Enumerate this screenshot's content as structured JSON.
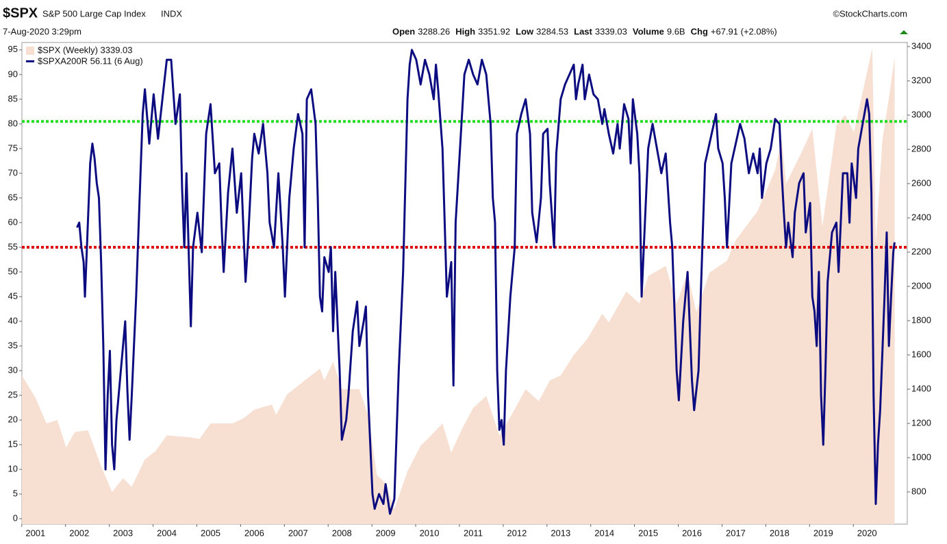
{
  "chart_data": {
    "type": "line",
    "header": {
      "symbol": "$SPX",
      "name": "S&P 500 Large Cap Index",
      "exchange": "INDX",
      "source": "©StockCharts.com",
      "date": "7-Aug-2020 3:29pm",
      "quote": [
        {
          "label": "Open",
          "value": 3288.26
        },
        {
          "label": "High",
          "value": 3351.92
        },
        {
          "label": "Low",
          "value": 3284.53
        },
        {
          "label": "Last",
          "value": 3339.03
        },
        {
          "label": "Volume",
          "value": "9.6B"
        },
        {
          "label": "Chg",
          "value": "+67.91 (+2.08%)"
        }
      ]
    },
    "xlim": [
      2000.69,
      2020.92
    ],
    "xticks": [
      2001,
      2002,
      2003,
      2004,
      2005,
      2006,
      2007,
      2008,
      2009,
      2010,
      2011,
      2012,
      2013,
      2014,
      2015,
      2016,
      2017,
      2018,
      2019,
      2020
    ],
    "ylim": [
      -1.1,
      96.5
    ],
    "yticks": [
      0,
      5,
      10,
      15,
      20,
      25,
      30,
      35,
      40,
      45,
      50,
      55,
      60,
      65,
      70,
      75,
      80,
      85,
      90,
      95
    ],
    "y2lim": [
      612,
      3424
    ],
    "y2ticks": [
      800,
      1000,
      1200,
      1400,
      1600,
      1800,
      2000,
      2200,
      2400,
      2600,
      2800,
      3000,
      3200,
      3400
    ],
    "reference_lines": [
      {
        "value": 80.5,
        "color": "#22dd22"
      },
      {
        "value": 55,
        "color": "#dd0000"
      }
    ],
    "series": [
      {
        "name": "$SPX (Weekly) 3339.03",
        "axis": "y2",
        "style": "area",
        "color": "#f7dfd2",
        "x": [
          2000.69,
          2001.0,
          2001.25,
          2001.5,
          2001.7,
          2001.9,
          2002.2,
          2002.5,
          2002.75,
          2003.0,
          2003.2,
          2003.5,
          2003.75,
          2004.0,
          2004.5,
          2004.75,
          2005.0,
          2005.5,
          2005.75,
          2006.0,
          2006.4,
          2006.5,
          2006.75,
          2007.0,
          2007.5,
          2007.6,
          2007.8,
          2008.0,
          2008.4,
          2008.6,
          2008.8,
          2009.0,
          2009.2,
          2009.5,
          2009.8,
          2010.0,
          2010.3,
          2010.5,
          2010.75,
          2011.0,
          2011.3,
          2011.6,
          2011.9,
          2012.2,
          2012.5,
          2012.75,
          2013.0,
          2013.3,
          2013.6,
          2013.95,
          2014.1,
          2014.5,
          2014.8,
          2015.0,
          2015.4,
          2015.65,
          2015.9,
          2016.1,
          2016.4,
          2016.8,
          2017.0,
          2017.5,
          2017.9,
          2018.05,
          2018.15,
          2018.5,
          2018.75,
          2018.98,
          2019.3,
          2019.5,
          2019.7,
          2020.0,
          2020.12,
          2020.2,
          2020.35,
          2020.5,
          2020.63
        ],
        "values": [
          1480,
          1350,
          1200,
          1220,
          1060,
          1150,
          1160,
          950,
          800,
          880,
          830,
          990,
          1040,
          1130,
          1120,
          1110,
          1200,
          1200,
          1230,
          1280,
          1310,
          1250,
          1370,
          1420,
          1520,
          1450,
          1560,
          1400,
          1400,
          1250,
          900,
          850,
          700,
          920,
          1070,
          1120,
          1200,
          1030,
          1170,
          1290,
          1360,
          1130,
          1260,
          1400,
          1330,
          1450,
          1480,
          1600,
          1690,
          1840,
          1790,
          1970,
          1900,
          2060,
          2120,
          1900,
          2080,
          1850,
          2080,
          2150,
          2270,
          2440,
          2680,
          2860,
          2600,
          2780,
          2920,
          2350,
          2940,
          3000,
          2900,
          3250,
          3390,
          2250,
          2850,
          3100,
          3339
        ]
      },
      {
        "name": "$SPXA200R 56.11 (6 Aug)",
        "style": "line",
        "color": "#0c0c80",
        "x": [
          2001.95,
          2002.0,
          2002.05,
          2002.1,
          2002.13,
          2002.18,
          2002.25,
          2002.3,
          2002.35,
          2002.4,
          2002.45,
          2002.5,
          2002.55,
          2002.6,
          2002.65,
          2002.7,
          2002.75,
          2002.8,
          2002.85,
          2002.9,
          2002.95,
          2003.05,
          2003.1,
          2003.15,
          2003.2,
          2003.3,
          2003.4,
          2003.45,
          2003.5,
          2003.6,
          2003.7,
          2003.8,
          2003.9,
          2004.0,
          2004.1,
          2004.2,
          2004.3,
          2004.35,
          2004.4,
          2004.45,
          2004.55,
          2004.6,
          2004.7,
          2004.8,
          2004.9,
          2005.0,
          2005.1,
          2005.2,
          2005.25,
          2005.3,
          2005.4,
          2005.5,
          2005.6,
          2005.7,
          2005.8,
          2005.85,
          2005.95,
          2006.0,
          2006.1,
          2006.2,
          2006.3,
          2006.35,
          2006.45,
          2006.55,
          2006.65,
          2006.7,
          2006.8,
          2006.9,
          2007.0,
          2007.1,
          2007.15,
          2007.2,
          2007.3,
          2007.4,
          2007.45,
          2007.5,
          2007.55,
          2007.6,
          2007.7,
          2007.75,
          2007.8,
          2007.85,
          2007.95,
          2008.0,
          2008.1,
          2008.15,
          2008.25,
          2008.35,
          2008.4,
          2008.5,
          2008.55,
          2008.6,
          2008.7,
          2008.75,
          2008.85,
          2008.95,
          2009.0,
          2009.1,
          2009.2,
          2009.3,
          2009.4,
          2009.5,
          2009.55,
          2009.6,
          2009.7,
          2009.8,
          2009.9,
          2010.0,
          2010.1,
          2010.15,
          2010.2,
          2010.3,
          2010.35,
          2010.4,
          2010.5,
          2010.55,
          2010.6,
          2010.7,
          2010.8,
          2010.9,
          2011.0,
          2011.1,
          2011.2,
          2011.3,
          2011.4,
          2011.45,
          2011.5,
          2011.55,
          2011.6,
          2011.65,
          2011.7,
          2011.75,
          2011.85,
          2011.95,
          2012.0,
          2012.1,
          2012.2,
          2012.3,
          2012.35,
          2012.45,
          2012.55,
          2012.6,
          2012.7,
          2012.75,
          2012.85,
          2012.9,
          2013.0,
          2013.1,
          2013.2,
          2013.3,
          2013.35,
          2013.4,
          2013.5,
          2013.55,
          2013.65,
          2013.75,
          2013.85,
          2013.95,
          2014.0,
          2014.1,
          2014.2,
          2014.3,
          2014.35,
          2014.45,
          2014.55,
          2014.6,
          2014.65,
          2014.75,
          2014.8,
          2014.85,
          2014.9,
          2015.0,
          2015.1,
          2015.2,
          2015.3,
          2015.4,
          2015.5,
          2015.55,
          2015.65,
          2015.7,
          2015.8,
          2015.9,
          2015.95,
          2016.0,
          2016.05,
          2016.15,
          2016.2,
          2016.3,
          2016.4,
          2016.5,
          2016.55,
          2016.6,
          2016.7,
          2016.75,
          2016.8,
          2016.9,
          2017.0,
          2017.1,
          2017.2,
          2017.3,
          2017.4,
          2017.5,
          2017.55,
          2017.6,
          2017.7,
          2017.8,
          2017.9,
          2018.0,
          2018.05,
          2018.1,
          2018.15,
          2018.2,
          2018.3,
          2018.35,
          2018.45,
          2018.55,
          2018.6,
          2018.7,
          2018.75,
          2018.8,
          2018.85,
          2018.9,
          2018.95,
          2019.0,
          2019.05,
          2019.1,
          2019.2,
          2019.3,
          2019.35,
          2019.45,
          2019.55,
          2019.6,
          2019.65,
          2019.75,
          2019.8,
          2019.9,
          2020.0,
          2020.05,
          2020.1,
          2020.15,
          2020.2,
          2020.25,
          2020.3,
          2020.4,
          2020.45,
          2020.5,
          2020.55,
          2020.6,
          2020.63
        ],
        "values": [
          59,
          60,
          55,
          52,
          45,
          56,
          72,
          76,
          73,
          68,
          65,
          52,
          35,
          10,
          25,
          34,
          15,
          10,
          20,
          25,
          30,
          40,
          26,
          16,
          25,
          45,
          70,
          82,
          87,
          76,
          86,
          77,
          85,
          93,
          93,
          80,
          86,
          67,
          55,
          70,
          39,
          55,
          62,
          54,
          78,
          84,
          70,
          72,
          60,
          50,
          66,
          75,
          62,
          70,
          48,
          55,
          73,
          78,
          74,
          80,
          70,
          60,
          55,
          70,
          55,
          45,
          65,
          75,
          82,
          78,
          55,
          85,
          87,
          80,
          65,
          45,
          42,
          53,
          50,
          55,
          38,
          50,
          30,
          16,
          20,
          25,
          38,
          44,
          35,
          40,
          43,
          25,
          5,
          2,
          5,
          3,
          7,
          1,
          4,
          30,
          50,
          85,
          92,
          95,
          93,
          88,
          93,
          90,
          85,
          92,
          87,
          75,
          60,
          45,
          52,
          27,
          60,
          75,
          90,
          93,
          90,
          88,
          93,
          90,
          80,
          65,
          60,
          30,
          18,
          20,
          15,
          30,
          45,
          55,
          78,
          82,
          85,
          78,
          62,
          56,
          65,
          78,
          79,
          68,
          55,
          74,
          85,
          88,
          90,
          92,
          85,
          88,
          92,
          85,
          90,
          86,
          85,
          80,
          83,
          78,
          74,
          80,
          75,
          84,
          81,
          72,
          85,
          78,
          70,
          45,
          55,
          75,
          80,
          75,
          70,
          74,
          60,
          55,
          30,
          24,
          40,
          50,
          39,
          28,
          22,
          30,
          45,
          72,
          76,
          80,
          82,
          75,
          72,
          65,
          55,
          72,
          76,
          80,
          77,
          70,
          74,
          70,
          75,
          65,
          72,
          75,
          81,
          80,
          70,
          62,
          55,
          60,
          53,
          62,
          68,
          70,
          58,
          64,
          45,
          42,
          35,
          50,
          25,
          15,
          30,
          48,
          58,
          60,
          50,
          70,
          70,
          60,
          72,
          65,
          75,
          80,
          85,
          82,
          66,
          25,
          3,
          15,
          22,
          45,
          58,
          35,
          45,
          54,
          56
        ]
      }
    ]
  }
}
